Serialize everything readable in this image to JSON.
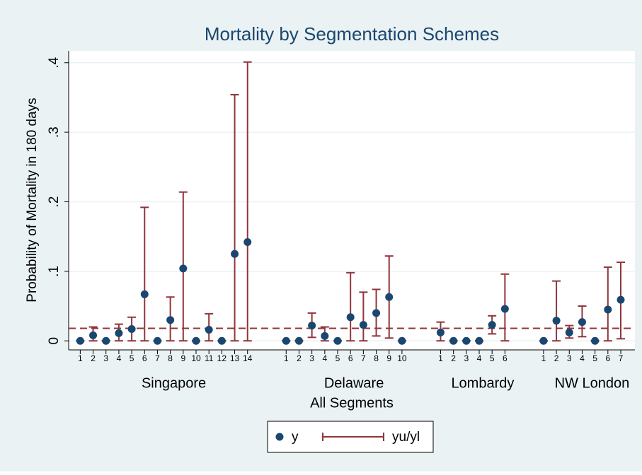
{
  "chart_data": {
    "type": "dot-errorbar",
    "title": "Mortality by Segmentation Schemes",
    "y_label": "Probability of Mortality in 180 days",
    "x_label": "All Segments",
    "groups": [
      "Singapore",
      "Delaware",
      "Lombardy",
      "NW London"
    ],
    "x": [
      1,
      2,
      3,
      4,
      5,
      6,
      7,
      8,
      9,
      10,
      11,
      12,
      13,
      14,
      17,
      18,
      19,
      20,
      21,
      22,
      23,
      24,
      25,
      26,
      29,
      30,
      31,
      32,
      33,
      34,
      37,
      38,
      39,
      40,
      41,
      42,
      43
    ],
    "xticks": [
      {
        "value": 1,
        "label": "1"
      },
      {
        "value": 2,
        "label": "2"
      },
      {
        "value": 3,
        "label": "3"
      },
      {
        "value": 4,
        "label": "4"
      },
      {
        "value": 5,
        "label": "5"
      },
      {
        "value": 6,
        "label": "6"
      },
      {
        "value": 7,
        "label": "7"
      },
      {
        "value": 8,
        "label": "8"
      },
      {
        "value": 9,
        "label": "9"
      },
      {
        "value": 10,
        "label": "10"
      },
      {
        "value": 11,
        "label": "11"
      },
      {
        "value": 12,
        "label": "12"
      },
      {
        "value": 13,
        "label": "13"
      },
      {
        "value": 14,
        "label": "14"
      },
      {
        "value": 17,
        "label": "1"
      },
      {
        "value": 18,
        "label": "2"
      },
      {
        "value": 19,
        "label": "3"
      },
      {
        "value": 20,
        "label": "4"
      },
      {
        "value": 21,
        "label": "5"
      },
      {
        "value": 22,
        "label": "6"
      },
      {
        "value": 23,
        "label": "7"
      },
      {
        "value": 24,
        "label": "8"
      },
      {
        "value": 25,
        "label": "9"
      },
      {
        "value": 26,
        "label": "10"
      },
      {
        "value": 29,
        "label": "1"
      },
      {
        "value": 30,
        "label": "2"
      },
      {
        "value": 31,
        "label": "3"
      },
      {
        "value": 32,
        "label": "4"
      },
      {
        "value": 33,
        "label": "5"
      },
      {
        "value": 34,
        "label": "6"
      },
      {
        "value": 37,
        "label": "1"
      },
      {
        "value": 38,
        "label": "2"
      },
      {
        "value": 39,
        "label": "3"
      },
      {
        "value": 40,
        "label": "4"
      },
      {
        "value": 41,
        "label": "5"
      },
      {
        "value": 42,
        "label": "6"
      },
      {
        "value": 43,
        "label": "7"
      }
    ],
    "xlim": [
      0.1,
      44.1
    ],
    "ylim": [
      -0.013,
      0.417
    ],
    "yticks": [
      0,
      {
        "value": 0.1,
        "label": ".1"
      },
      {
        "value": 0.2,
        "label": ".2"
      },
      {
        "value": 0.3,
        "label": ".3"
      },
      {
        "value": 0.4,
        "label": ".4"
      }
    ],
    "grid": true,
    "reference_line": 0.018,
    "reference_color": "#90353b",
    "series": [
      {
        "name": "y",
        "color": "#1a476f",
        "values": [
          0,
          0.008,
          0,
          0.011,
          0.017,
          0.067,
          0,
          0.03,
          0.104,
          0,
          0.016,
          0,
          0.125,
          0.142,
          0,
          0,
          0.022,
          0.007,
          0,
          0.034,
          0.023,
          0.04,
          0.063,
          0,
          0.012,
          0,
          0,
          0,
          0.023,
          0.046,
          0,
          0.029,
          0.012,
          0.027,
          0,
          0.045,
          0.059
        ]
      },
      {
        "name": "yu/yl",
        "color": "#90353b",
        "upper": [
          0,
          0.02,
          0,
          0.024,
          0.034,
          0.192,
          0,
          0.063,
          0.214,
          0,
          0.039,
          0,
          0.354,
          0.401,
          0,
          0,
          0.04,
          0.02,
          0,
          0.098,
          0.07,
          0.074,
          0.122,
          0,
          0.027,
          0,
          0,
          0,
          0.036,
          0.096,
          0,
          0.086,
          0.022,
          0.05,
          0,
          0.106,
          0.113
        ],
        "lower": [
          0,
          0,
          0,
          0,
          0,
          0,
          0,
          0,
          0,
          0,
          0,
          0,
          0,
          0,
          0,
          0,
          0.005,
          0,
          0,
          0,
          0,
          0.007,
          0.004,
          0,
          0,
          0,
          0,
          0,
          0.01,
          0,
          0,
          0,
          0.004,
          0.006,
          0,
          0,
          0.003
        ]
      }
    ]
  }
}
